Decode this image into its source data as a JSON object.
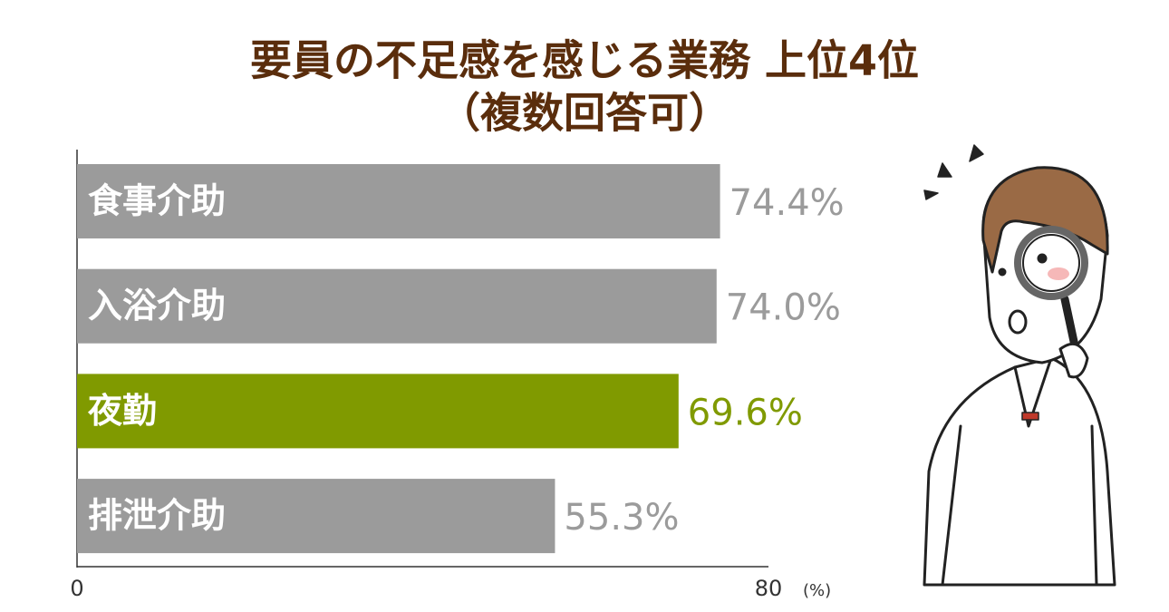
{
  "chart_data": {
    "type": "bar",
    "orientation": "horizontal",
    "title": "要員の不足感を感じる業務 上位4位",
    "subtitle": "（複数回答可）",
    "categories": [
      "食事介助",
      "入浴介助",
      "夜勤",
      "排泄介助"
    ],
    "values": [
      74.4,
      74.0,
      69.6,
      55.3
    ],
    "value_labels": [
      "74.4%",
      "74.0%",
      "69.6%",
      "55.3%"
    ],
    "colors": [
      "#9b9b9b",
      "#9b9b9b",
      "#809a00",
      "#9b9b9b"
    ],
    "xlim": [
      0,
      80
    ],
    "xticks": [
      0,
      80
    ],
    "xlabel": "(%)"
  }
}
